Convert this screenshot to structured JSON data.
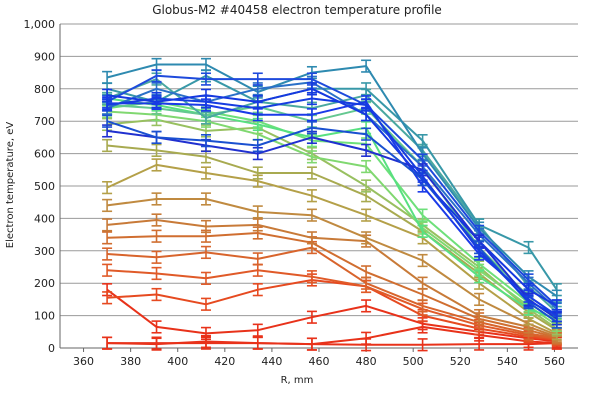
{
  "chart_data": {
    "type": "line",
    "title": "Globus-M2 #40458 electron temperature profile",
    "xlabel": "R, mm",
    "ylabel": "Electron temperature, eV",
    "xlim": [
      350,
      570
    ],
    "ylim": [
      0,
      1000
    ],
    "x_ticks": [
      "360",
      "380",
      "400",
      "420",
      "440",
      "460",
      "480",
      "500",
      "520",
      "540",
      "560"
    ],
    "y_ticks": [
      "0",
      "100",
      "200",
      "300",
      "400",
      "500",
      "600",
      "700",
      "800",
      "900",
      "1,000"
    ],
    "grid": "horizontal",
    "legend": "none",
    "x": [
      370,
      391,
      412,
      434,
      457,
      480,
      504,
      528,
      549,
      561
    ],
    "error_bar": 18,
    "series": [
      {
        "color": "#e8321a",
        "values": [
          15,
          15,
          15,
          15,
          12,
          10,
          10,
          12,
          12,
          15
        ]
      },
      {
        "color": "#e8321a",
        "values": [
          15,
          12,
          20,
          15,
          12,
          30,
          65,
          40,
          20,
          15
        ]
      },
      {
        "color": "#e8321a",
        "values": [
          180,
          65,
          45,
          55,
          95,
          130,
          75,
          50,
          30,
          20
        ]
      },
      {
        "color": "#e64a20",
        "values": [
          155,
          165,
          135,
          180,
          210,
          190,
          100,
          60,
          35,
          25
        ]
      },
      {
        "color": "#e05a28",
        "values": [
          240,
          230,
          215,
          240,
          220,
          190,
          120,
          70,
          40,
          28
        ]
      },
      {
        "color": "#d8642c",
        "values": [
          290,
          280,
          295,
          275,
          310,
          200,
          130,
          80,
          45,
          30
        ]
      },
      {
        "color": "#d06e30",
        "values": [
          340,
          345,
          345,
          355,
          325,
          235,
          165,
          90,
          55,
          32
        ]
      },
      {
        "color": "#c87a38",
        "values": [
          380,
          395,
          375,
          380,
          340,
          330,
          200,
          100,
          65,
          35
        ]
      },
      {
        "color": "#c08a40",
        "values": [
          440,
          460,
          460,
          420,
          410,
          340,
          270,
          150,
          75,
          40
        ]
      },
      {
        "color": "#b4a048",
        "values": [
          495,
          565,
          540,
          515,
          470,
          410,
          340,
          200,
          90,
          45
        ]
      },
      {
        "color": "#a8aa50",
        "values": [
          625,
          610,
          590,
          540,
          540,
          470,
          360,
          230,
          110,
          55
        ]
      },
      {
        "color": "#98c060",
        "values": [
          690,
          705,
          670,
          680,
          600,
          500,
          380,
          250,
          120,
          60
        ]
      },
      {
        "color": "#80d870",
        "values": [
          730,
          720,
          700,
          660,
          590,
          560,
          370,
          240,
          130,
          70
        ]
      },
      {
        "color": "#6ee07a",
        "values": [
          740,
          760,
          730,
          700,
          640,
          630,
          410,
          260,
          140,
          80
        ]
      },
      {
        "color": "#58e080",
        "values": [
          770,
          750,
          720,
          690,
          650,
          680,
          360,
          220,
          120,
          90
        ]
      },
      {
        "color": "#64c890",
        "values": [
          750,
          740,
          720,
          745,
          700,
          740,
          560,
          310,
          160,
          100
        ]
      },
      {
        "color": "#4aa8a0",
        "values": [
          770,
          830,
          710,
          760,
          740,
          780,
          610,
          380,
          190,
          110
        ]
      },
      {
        "color": "#3898a8",
        "values": [
          800,
          760,
          840,
          760,
          800,
          800,
          640,
          380,
          310,
          180
        ]
      },
      {
        "color": "#2e8ab0",
        "values": [
          835,
          875,
          875,
          790,
          850,
          870,
          600,
          370,
          220,
          160
        ]
      },
      {
        "color": "#2a70c8",
        "values": [
          740,
          800,
          760,
          800,
          820,
          720,
          560,
          350,
          200,
          120
        ]
      },
      {
        "color": "#1e4adc",
        "values": [
          760,
          840,
          830,
          830,
          830,
          750,
          580,
          360,
          210,
          130
        ]
      },
      {
        "color": "#1538e0",
        "values": [
          780,
          760,
          780,
          760,
          800,
          720,
          520,
          330,
          180,
          130
        ]
      },
      {
        "color": "#1a3ae8",
        "values": [
          755,
          755,
          750,
          720,
          720,
          760,
          500,
          290,
          160,
          100
        ]
      },
      {
        "color": "#2030d0",
        "values": [
          670,
          650,
          625,
          600,
          650,
          610,
          550,
          330,
          150,
          90
        ]
      },
      {
        "color": "#1a50d0",
        "values": [
          700,
          650,
          640,
          625,
          680,
          660,
          520,
          310,
          140,
          80
        ]
      },
      {
        "color": "#163ce0",
        "values": [
          750,
          770,
          760,
          740,
          770,
          750,
          530,
          300,
          145,
          100
        ]
      }
    ]
  }
}
